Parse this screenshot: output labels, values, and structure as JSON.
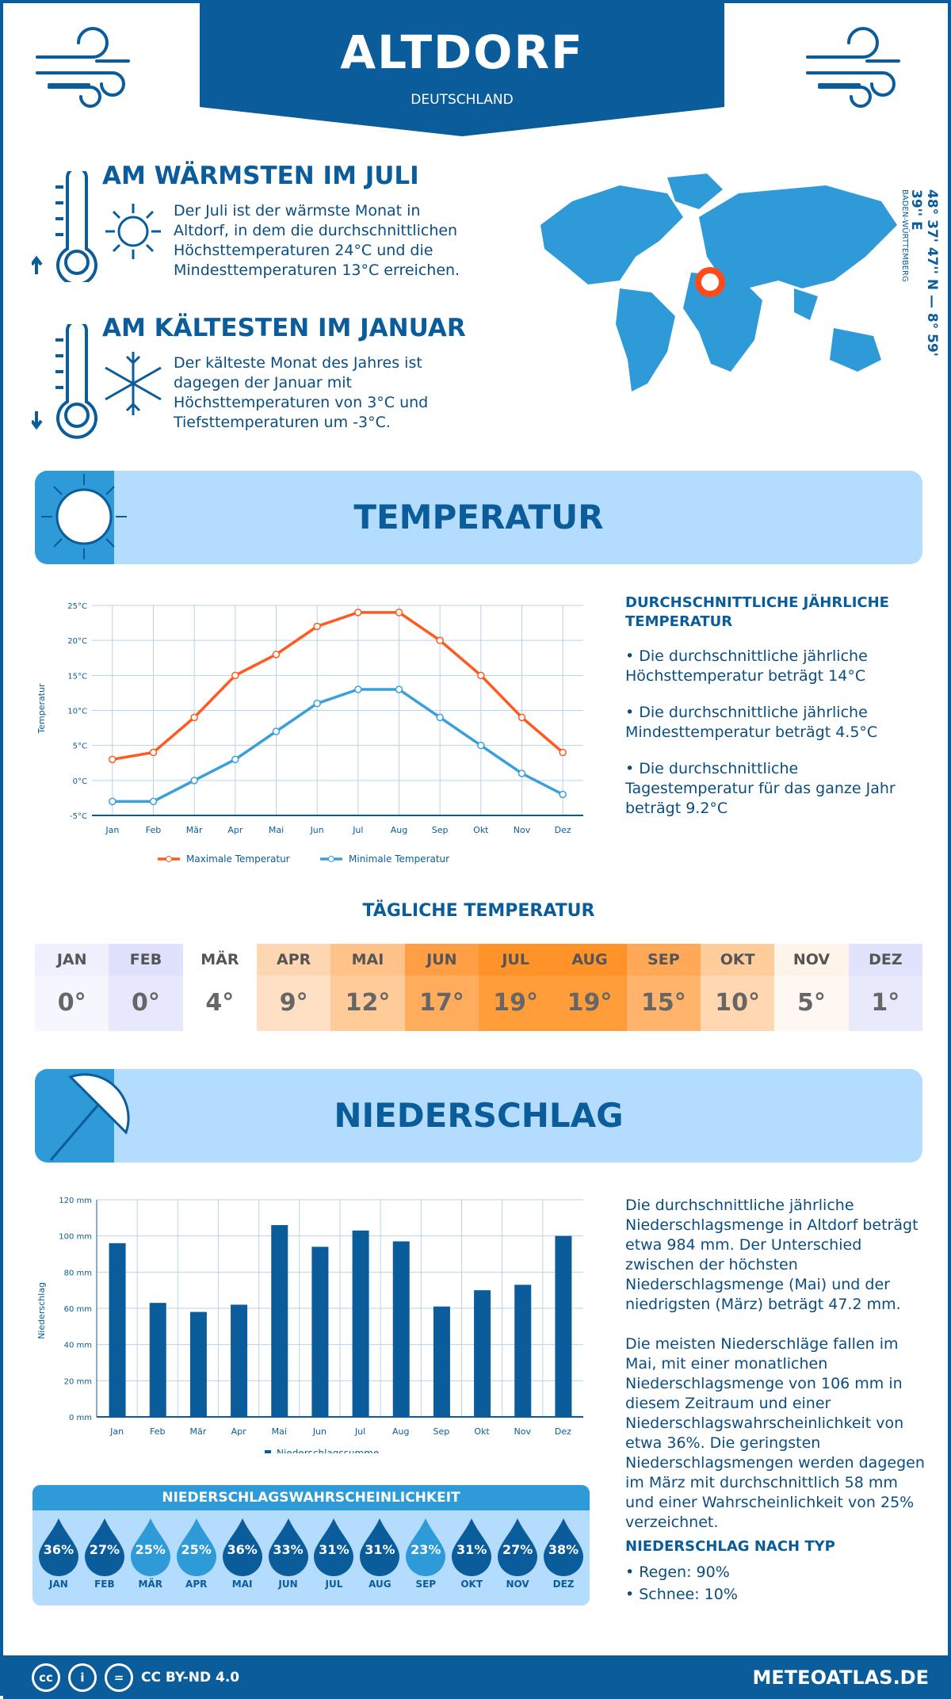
{
  "header": {
    "title": "ALTDORF",
    "subtitle": "DEUTSCHLAND"
  },
  "warmest": {
    "title": "AM WÄRMSTEN IM JULI",
    "text": "Der Juli ist der wärmste Monat in Altdorf, in dem die durchschnittlichen Höchsttemperaturen 24°C und die Mindesttemperaturen 13°C erreichen."
  },
  "coldest": {
    "title": "AM KÄLTESTEN IM JANUAR",
    "text": "Der kälteste Monat des Jahres ist dagegen der Januar mit Höchsttemperaturen von 3°C und Tiefsttemperaturen um -3°C."
  },
  "location": {
    "coords": "48° 37' 47'' N — 8° 59' 39'' E",
    "region": "BADEN-WÜRTTEMBERG"
  },
  "temperature": {
    "banner": "TEMPERATUR",
    "summary_title": "DURCHSCHNITTLICHE JÄHRLICHE TEMPERATUR",
    "bullets": [
      "• Die durchschnittliche jährliche Höchsttemperatur beträgt 14°C",
      "• Die durchschnittliche jährliche Mindesttemperatur beträgt 4.5°C",
      "• Die durchschnittliche Tagestemperatur für das ganze Jahr beträgt 9.2°C"
    ]
  },
  "daily": {
    "title": "TÄGLICHE TEMPERATUR",
    "months": [
      "JAN",
      "FEB",
      "MÄR",
      "APR",
      "MAI",
      "JUN",
      "JUL",
      "AUG",
      "SEP",
      "OKT",
      "NOV",
      "DEZ"
    ],
    "values": [
      "0°",
      "0°",
      "4°",
      "9°",
      "12°",
      "17°",
      "19°",
      "19°",
      "15°",
      "10°",
      "5°",
      "1°"
    ],
    "colors": [
      "#f5f6fe",
      "#e7e8fd",
      "#ffffff",
      "#ffe0c4",
      "#ffcc99",
      "#ffac5c",
      "#ff9d3a",
      "#ff9d3a",
      "#ffb36b",
      "#ffd7b0",
      "#fff8f2",
      "#e8eafc"
    ],
    "header_colors": [
      "#eef0fd",
      "#dfe1fc",
      "#ffffff",
      "#ffd6b2",
      "#ffc288",
      "#ff9f45",
      "#ff9228",
      "#ff9228",
      "#ffa858",
      "#ffcc9c",
      "#fff4ea",
      "#e0e3fb"
    ]
  },
  "precipitation": {
    "banner": "NIEDERSCHLAG",
    "text1": "Die durchschnittliche jährliche Niederschlagsmenge in Altdorf beträgt etwa 984 mm. Der Unterschied zwischen der höchsten Niederschlagsmenge (Mai) und der niedrigsten (März) beträgt 47.2 mm.",
    "text2": "Die meisten Niederschläge fallen im Mai, mit einer monatlichen Niederschlagsmenge von 106 mm in diesem Zeitraum und einer Niederschlagswahrscheinlichkeit von etwa 36%. Die geringsten Niederschlagsmengen werden dagegen im März mit durchschnittlich 58 mm und einer Wahrscheinlichkeit von 25% verzeichnet.",
    "type_title": "NIEDERSCHLAG NACH TYP",
    "types": [
      "• Regen: 90%",
      "• Schnee: 10%"
    ]
  },
  "probability": {
    "title": "NIEDERSCHLAGSWAHRSCHEINLICHKEIT",
    "months": [
      "JAN",
      "FEB",
      "MÄR",
      "APR",
      "MAI",
      "JUN",
      "JUL",
      "AUG",
      "SEP",
      "OKT",
      "NOV",
      "DEZ"
    ],
    "values": [
      "36%",
      "27%",
      "25%",
      "25%",
      "36%",
      "33%",
      "31%",
      "31%",
      "23%",
      "31%",
      "27%",
      "38%"
    ],
    "colors": [
      "#0a5c9a",
      "#0a5c9a",
      "#2e9ad8",
      "#2e9ad8",
      "#0a5c9a",
      "#0a5c9a",
      "#0a5c9a",
      "#0a5c9a",
      "#2e9ad8",
      "#0a5c9a",
      "#0a5c9a",
      "#0a5c9a"
    ]
  },
  "footer": {
    "license": "CC BY-ND 4.0",
    "site": "METEOATLAS.DE",
    "cc_icons": [
      "cc",
      "i",
      "="
    ]
  },
  "chart_data": [
    {
      "type": "line",
      "categories": [
        "Jan",
        "Feb",
        "Mär",
        "Apr",
        "Mai",
        "Jun",
        "Jul",
        "Aug",
        "Sep",
        "Okt",
        "Nov",
        "Dez"
      ],
      "ylabel": "Temperatur",
      "ylim": [
        -5,
        25
      ],
      "yticks": [
        "-5°C",
        "0°C",
        "5°C",
        "10°C",
        "15°C",
        "20°C",
        "25°C"
      ],
      "grid": true,
      "legend": "bottom",
      "series": [
        {
          "name": "Maximale Temperatur",
          "color": "#ff5a1f",
          "values": [
            3,
            4,
            9,
            15,
            18,
            22,
            24,
            24,
            20,
            15,
            9,
            4
          ]
        },
        {
          "name": "Minimale Temperatur",
          "color": "#3aa0dc",
          "values": [
            -3,
            -3,
            0,
            3,
            7,
            11,
            13,
            13,
            9,
            5,
            1,
            -2
          ]
        }
      ]
    },
    {
      "type": "bar",
      "categories": [
        "Jan",
        "Feb",
        "Mär",
        "Apr",
        "Mai",
        "Jun",
        "Jul",
        "Aug",
        "Sep",
        "Okt",
        "Nov",
        "Dez"
      ],
      "ylabel": "Niederschlag",
      "ylim": [
        0,
        120
      ],
      "yticks": [
        "0 mm",
        "20 mm",
        "40 mm",
        "60 mm",
        "80 mm",
        "100 mm",
        "120 mm"
      ],
      "grid": true,
      "legend": "bottom",
      "series": [
        {
          "name": "Niederschlagssumme",
          "color": "#0a5c9a",
          "values": [
            96,
            63,
            58,
            62,
            106,
            94,
            103,
            97,
            61,
            70,
            73,
            100
          ]
        }
      ]
    }
  ]
}
